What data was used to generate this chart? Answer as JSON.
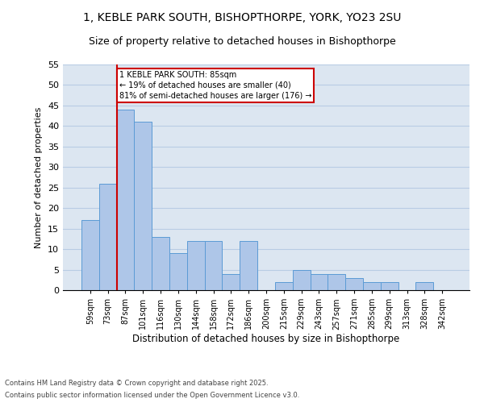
{
  "title1": "1, KEBLE PARK SOUTH, BISHOPTHORPE, YORK, YO23 2SU",
  "title2": "Size of property relative to detached houses in Bishopthorpe",
  "xlabel": "Distribution of detached houses by size in Bishopthorpe",
  "ylabel": "Number of detached properties",
  "categories": [
    "59sqm",
    "73sqm",
    "87sqm",
    "101sqm",
    "116sqm",
    "130sqm",
    "144sqm",
    "158sqm",
    "172sqm",
    "186sqm",
    "200sqm",
    "215sqm",
    "229sqm",
    "243sqm",
    "257sqm",
    "271sqm",
    "285sqm",
    "299sqm",
    "313sqm",
    "328sqm",
    "342sqm"
  ],
  "values": [
    17,
    26,
    44,
    41,
    13,
    9,
    12,
    12,
    4,
    12,
    0,
    2,
    5,
    4,
    4,
    3,
    2,
    2,
    0,
    2,
    0
  ],
  "bar_color": "#aec6e8",
  "bar_edge_color": "#5b9bd5",
  "vline_x_index": 2,
  "vline_color": "#cc0000",
  "annotation_text": "1 KEBLE PARK SOUTH: 85sqm\n← 19% of detached houses are smaller (40)\n81% of semi-detached houses are larger (176) →",
  "annotation_box_color": "#cc0000",
  "ylim": [
    0,
    55
  ],
  "yticks": [
    0,
    5,
    10,
    15,
    20,
    25,
    30,
    35,
    40,
    45,
    50,
    55
  ],
  "grid_color": "#b8cce4",
  "background_color": "#dce6f1",
  "footer1": "Contains HM Land Registry data © Crown copyright and database right 2025.",
  "footer2": "Contains public sector information licensed under the Open Government Licence v3.0.",
  "title_fontsize": 10,
  "subtitle_fontsize": 9,
  "footer_fontsize": 6
}
